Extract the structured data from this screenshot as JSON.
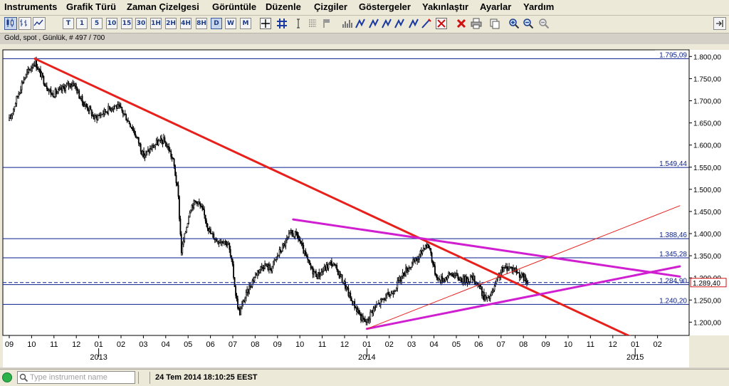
{
  "menu": [
    "Instruments",
    "Grafik Türü",
    "Zaman Çizelgesi",
    "Görüntüle",
    "Düzenle",
    "Çizgiler",
    "Göstergeler",
    "Yakınlaştır",
    "Ayarlar",
    "Yardım"
  ],
  "toolbar": {
    "chart_types": [
      {
        "name": "candlestick-chart-icon",
        "selected": true
      },
      {
        "name": "bar-chart-icon",
        "selected": false
      },
      {
        "name": "line-chart-icon",
        "selected": false
      }
    ],
    "timeframes": [
      {
        "label": "T",
        "selected": false
      },
      {
        "label": "1",
        "selected": false
      },
      {
        "label": "5",
        "selected": false
      },
      {
        "label": "10",
        "selected": false
      },
      {
        "label": "15",
        "selected": false
      },
      {
        "label": "30",
        "selected": false
      },
      {
        "label": "1H",
        "selected": false
      },
      {
        "label": "2H",
        "selected": false
      },
      {
        "label": "4H",
        "selected": false
      },
      {
        "label": "8H",
        "selected": false
      },
      {
        "label": "D",
        "selected": true
      },
      {
        "label": "W",
        "selected": false
      },
      {
        "label": "M",
        "selected": false
      }
    ],
    "tools": [
      "crosshair-icon",
      "grid-icon",
      "text-cursor-icon",
      "fibonacci-icon",
      "flag-icon",
      "volume-icon",
      "trend-line-icon",
      "trend-line-icon",
      "trend-line-icon",
      "trend-line-icon",
      "trend-line-icon",
      "pencil-icon",
      "delete-selected-icon",
      "delete-all-icon",
      "print-icon",
      "copy-icon",
      "zoom-in-icon",
      "zoom-out-icon",
      "zoom-reset-icon"
    ],
    "right_icon": "pin-panel-icon"
  },
  "instrument_info": "Gold, spot , Günlük, # 497 / 700",
  "chart_data": {
    "type": "candlestick",
    "instrument": "Gold, spot",
    "timeframe": "Günlük",
    "bars_shown": "497 / 700",
    "ylim": [
      1170,
      1815
    ],
    "yticks": [
      "1.800,00",
      "1.750,00",
      "1.700,00",
      "1.650,00",
      "1.600,00",
      "1.550,00",
      "1.500,00",
      "1.450,00",
      "1.400,00",
      "1.350,00",
      "1.300,00",
      "1.250,00",
      "1.200,00"
    ],
    "ytick_values": [
      1800,
      1750,
      1700,
      1650,
      1600,
      1550,
      1500,
      1450,
      1400,
      1350,
      1300,
      1250,
      1200
    ],
    "x_months": [
      "09",
      "10",
      "11",
      "12",
      "01",
      "02",
      "03",
      "04",
      "05",
      "06",
      "07",
      "08",
      "09",
      "10",
      "11",
      "12",
      "01",
      "02",
      "03",
      "04",
      "05",
      "06",
      "07",
      "08",
      "09",
      "10",
      "11",
      "12",
      "01",
      "02"
    ],
    "x_month_start": "2012-09",
    "x_years": [
      {
        "label": "2013",
        "month_index": 4
      },
      {
        "label": "2014",
        "month_index": 16
      },
      {
        "label": "2015",
        "month_index": 28
      }
    ],
    "close_price": 1289.4,
    "close_label": "1.289,40",
    "horizontal_levels": [
      {
        "value": 1795.09,
        "label": "1.795,09",
        "style": "solid"
      },
      {
        "value": 1549.44,
        "label": "1.549,44",
        "style": "solid"
      },
      {
        "value": 1388.46,
        "label": "1.388,46",
        "style": "solid"
      },
      {
        "value": 1345.28,
        "label": "1.345,28",
        "style": "solid"
      },
      {
        "value": 1284.9,
        "label": "1.284,90",
        "style": "solid"
      },
      {
        "value": 1289.4,
        "label": "",
        "style": "dashed"
      },
      {
        "value": 1240.2,
        "label": "1.240,20",
        "style": "solid"
      }
    ],
    "trend_lines": [
      {
        "color": "#e8201c",
        "width": 3,
        "from": {
          "month": 1.15,
          "price": 1795
        },
        "to": {
          "month": 27.9,
          "price": 1165
        }
      },
      {
        "color": "#d01fd0",
        "width": 3,
        "from": {
          "month": 12.7,
          "price": 1432
        },
        "to": {
          "month": 30,
          "price": 1303
        }
      },
      {
        "color": "#d01fd0",
        "width": 3,
        "from": {
          "month": 16.0,
          "price": 1185
        },
        "to": {
          "month": 30,
          "price": 1326
        }
      },
      {
        "color": "#e8201c",
        "width": 1,
        "from": {
          "month": 16.0,
          "price": 1185
        },
        "to": {
          "month": 30,
          "price": 1463
        }
      }
    ],
    "price_path": [
      {
        "month": 0.0,
        "price": 1655
      },
      {
        "month": 0.3,
        "price": 1700
      },
      {
        "month": 0.6,
        "price": 1745
      },
      {
        "month": 0.9,
        "price": 1770
      },
      {
        "month": 1.15,
        "price": 1790
      },
      {
        "month": 1.3,
        "price": 1770
      },
      {
        "month": 1.6,
        "price": 1740
      },
      {
        "month": 1.9,
        "price": 1715
      },
      {
        "month": 2.2,
        "price": 1720
      },
      {
        "month": 2.6,
        "price": 1735
      },
      {
        "month": 2.9,
        "price": 1740
      },
      {
        "month": 3.1,
        "price": 1715
      },
      {
        "month": 3.3,
        "price": 1695
      },
      {
        "month": 3.6,
        "price": 1680
      },
      {
        "month": 3.8,
        "price": 1660
      },
      {
        "month": 4.1,
        "price": 1670
      },
      {
        "month": 4.4,
        "price": 1680
      },
      {
        "month": 4.7,
        "price": 1690
      },
      {
        "month": 5.0,
        "price": 1680
      },
      {
        "month": 5.2,
        "price": 1665
      },
      {
        "month": 5.5,
        "price": 1640
      },
      {
        "month": 5.8,
        "price": 1605
      },
      {
        "month": 6.0,
        "price": 1575
      },
      {
        "month": 6.3,
        "price": 1590
      },
      {
        "month": 6.6,
        "price": 1605
      },
      {
        "month": 6.9,
        "price": 1610
      },
      {
        "month": 7.15,
        "price": 1590
      },
      {
        "month": 7.35,
        "price": 1560
      },
      {
        "month": 7.55,
        "price": 1490
      },
      {
        "month": 7.7,
        "price": 1360
      },
      {
        "month": 7.85,
        "price": 1395
      },
      {
        "month": 8.1,
        "price": 1460
      },
      {
        "month": 8.4,
        "price": 1475
      },
      {
        "month": 8.7,
        "price": 1445
      },
      {
        "month": 9.0,
        "price": 1400
      },
      {
        "month": 9.3,
        "price": 1385
      },
      {
        "month": 9.6,
        "price": 1385
      },
      {
        "month": 9.8,
        "price": 1375
      },
      {
        "month": 10.0,
        "price": 1320
      },
      {
        "month": 10.15,
        "price": 1255
      },
      {
        "month": 10.3,
        "price": 1220
      },
      {
        "month": 10.5,
        "price": 1250
      },
      {
        "month": 10.8,
        "price": 1285
      },
      {
        "month": 11.1,
        "price": 1315
      },
      {
        "month": 11.4,
        "price": 1330
      },
      {
        "month": 11.7,
        "price": 1320
      },
      {
        "month": 12.0,
        "price": 1350
      },
      {
        "month": 12.3,
        "price": 1375
      },
      {
        "month": 12.6,
        "price": 1400
      },
      {
        "month": 12.9,
        "price": 1395
      },
      {
        "month": 13.2,
        "price": 1355
      },
      {
        "month": 13.5,
        "price": 1320
      },
      {
        "month": 13.8,
        "price": 1305
      },
      {
        "month": 14.1,
        "price": 1320
      },
      {
        "month": 14.4,
        "price": 1335
      },
      {
        "month": 14.7,
        "price": 1315
      },
      {
        "month": 15.0,
        "price": 1285
      },
      {
        "month": 15.3,
        "price": 1250
      },
      {
        "month": 15.6,
        "price": 1225
      },
      {
        "month": 15.8,
        "price": 1205
      },
      {
        "month": 16.0,
        "price": 1200
      },
      {
        "month": 16.2,
        "price": 1225
      },
      {
        "month": 16.5,
        "price": 1240
      },
      {
        "month": 16.8,
        "price": 1255
      },
      {
        "month": 17.1,
        "price": 1265
      },
      {
        "month": 17.4,
        "price": 1290
      },
      {
        "month": 17.7,
        "price": 1315
      },
      {
        "month": 18.0,
        "price": 1330
      },
      {
        "month": 18.3,
        "price": 1345
      },
      {
        "month": 18.6,
        "price": 1375
      },
      {
        "month": 18.8,
        "price": 1370
      },
      {
        "month": 19.0,
        "price": 1320
      },
      {
        "month": 19.2,
        "price": 1295
      },
      {
        "month": 19.5,
        "price": 1300
      },
      {
        "month": 19.8,
        "price": 1310
      },
      {
        "month": 20.1,
        "price": 1300
      },
      {
        "month": 20.4,
        "price": 1295
      },
      {
        "month": 20.7,
        "price": 1300
      },
      {
        "month": 21.0,
        "price": 1285
      },
      {
        "month": 21.2,
        "price": 1260
      },
      {
        "month": 21.4,
        "price": 1250
      },
      {
        "month": 21.6,
        "price": 1265
      },
      {
        "month": 21.8,
        "price": 1290
      },
      {
        "month": 22.0,
        "price": 1315
      },
      {
        "month": 22.3,
        "price": 1325
      },
      {
        "month": 22.6,
        "price": 1320
      },
      {
        "month": 22.8,
        "price": 1310
      },
      {
        "month": 23.0,
        "price": 1300
      },
      {
        "month": 23.2,
        "price": 1289
      }
    ]
  },
  "status": {
    "search_placeholder": "Type instrument name",
    "datetime": "24 Tem 2014 18:10:25 EEST"
  }
}
